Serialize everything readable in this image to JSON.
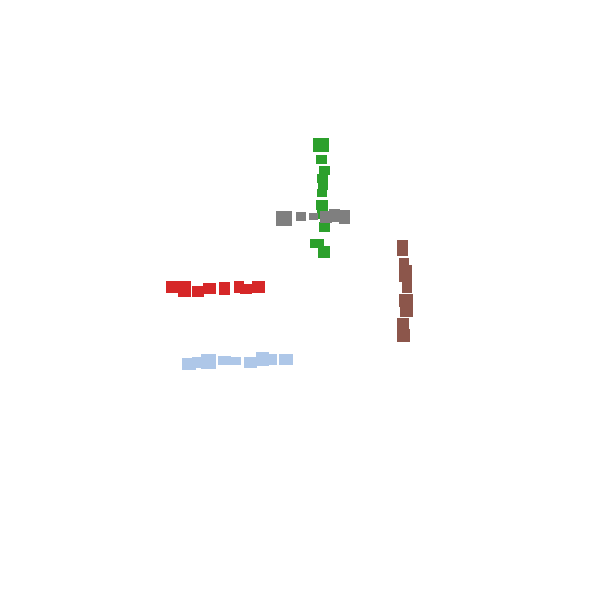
{
  "canvas": {
    "background": "#ffffff"
  },
  "groups": [
    {
      "id": "green-vertical-cluster",
      "color": "#2ca02c"
    },
    {
      "id": "gray-horizontal-cluster",
      "color": "#7f7f7f"
    },
    {
      "id": "brown-vertical-cluster",
      "color": "#8c564b"
    },
    {
      "id": "red-horizontal-cluster",
      "color": "#d62728"
    },
    {
      "id": "lightblue-horizontal-cluster",
      "color": "#aec7e8"
    }
  ]
}
